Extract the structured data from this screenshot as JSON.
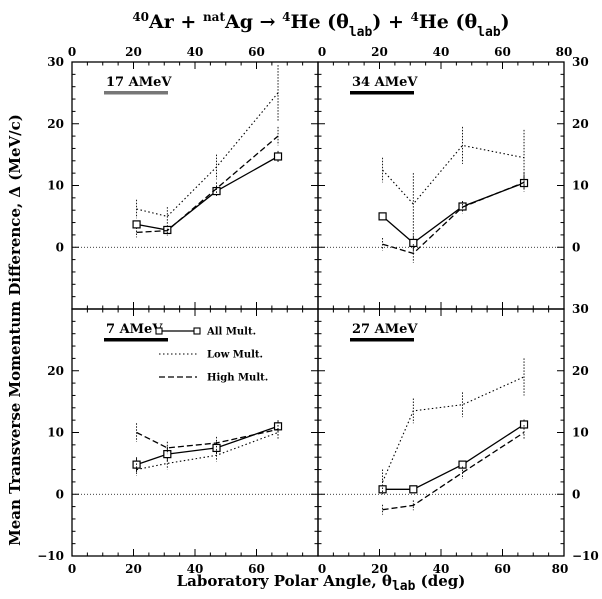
{
  "title": {
    "parts": [
      {
        "text": "40",
        "sup": true
      },
      {
        "text": "Ar + ",
        "sup": false
      },
      {
        "text": "nat",
        "sup": true
      },
      {
        "text": "Ag → ",
        "sup": false
      },
      {
        "text": "4",
        "sup": true
      },
      {
        "text": "He (θ",
        "sup": false
      },
      {
        "text": "lab",
        "sub": true
      },
      {
        "text": ") + ",
        "sup": false
      },
      {
        "text": "4",
        "sup": true
      },
      {
        "text": "He (θ",
        "sup": false
      },
      {
        "text": "lab",
        "sub": true
      },
      {
        "text": ")",
        "sup": false
      }
    ]
  },
  "xlabel": {
    "main": "Laboratory Polar Angle, θ",
    "sub": "lab",
    "tail": " (deg)"
  },
  "ylabel": "Mean Transverse Momentum Difference, Δ (MeV/c)",
  "legend": [
    {
      "name": "All  Mult.",
      "style": "solid"
    },
    {
      "name": "Low  Mult.",
      "style": "dotted"
    },
    {
      "name": "High Mult.",
      "style": "dashed"
    }
  ],
  "chart_data": [
    {
      "type": "line",
      "panel": "top-left",
      "label": "17 AMeV",
      "label_bar_color": "#777777",
      "xlim": [
        0,
        80
      ],
      "ylim": [
        -10,
        30
      ],
      "xticks_top": [
        "0",
        "20",
        "40",
        "60"
      ],
      "xticks_bottom": [],
      "yticks_left": [
        "30",
        "20",
        "10",
        "0"
      ],
      "yticks_right": [],
      "series": [
        {
          "name": "All  Mult.",
          "style": "solid",
          "marker": "square",
          "x": [
            21,
            31,
            47,
            67
          ],
          "y": [
            3.7,
            2.8,
            9.1,
            14.7
          ],
          "err": [
            0.6,
            0.6,
            0.8,
            0.9
          ]
        },
        {
          "name": "Low  Mult.",
          "style": "dotted",
          "x": [
            21,
            31,
            47,
            67
          ],
          "y": [
            6.2,
            5.0,
            13.0,
            25.0
          ],
          "err": [
            1.5,
            1.5,
            2.0,
            4.5
          ]
        },
        {
          "name": "High Mult.",
          "style": "dashed",
          "x": [
            21,
            31,
            47,
            67
          ],
          "y": [
            2.4,
            2.7,
            9.5,
            18.0
          ],
          "err": [
            0.8,
            0.8,
            1.0,
            1.5
          ]
        }
      ]
    },
    {
      "type": "line",
      "panel": "top-right",
      "label": "34 AMeV",
      "label_bar_color": "#000000",
      "xlim": [
        0,
        80
      ],
      "ylim": [
        -10,
        30
      ],
      "xticks_top": [
        "0",
        "20",
        "40",
        "60",
        "80"
      ],
      "xticks_bottom": [],
      "yticks_left": [],
      "yticks_right": [
        "30",
        "20",
        "10",
        "0"
      ],
      "series": [
        {
          "name": "All  Mult.",
          "style": "solid",
          "marker": "square",
          "x": [
            21,
            31,
            47,
            67
          ],
          "y": [
            5.0,
            0.7,
            6.6,
            10.4
          ],
          "err": [
            0.6,
            1.2,
            0.7,
            1.0
          ]
        },
        {
          "name": "Low  Mult.",
          "style": "dotted",
          "x": [
            21,
            31,
            47,
            67
          ],
          "y": [
            12.5,
            7.0,
            16.5,
            14.5
          ],
          "err": [
            2.0,
            5.0,
            3.0,
            4.5
          ]
        },
        {
          "name": "High Mult.",
          "style": "dashed",
          "x": [
            21,
            31,
            47,
            67
          ],
          "y": [
            0.5,
            -1.0,
            6.5,
            10.5
          ],
          "err": [
            1.0,
            1.5,
            1.0,
            1.5
          ]
        }
      ]
    },
    {
      "type": "line",
      "panel": "bottom-left",
      "label": "7 AMeV",
      "label_bar_color": "#000000",
      "xlim": [
        0,
        80
      ],
      "ylim": [
        -10,
        30
      ],
      "xticks_top": [],
      "xticks_bottom": [
        "0",
        "20",
        "40",
        "60"
      ],
      "yticks_left": [
        "20",
        "10",
        "0",
        "−10"
      ],
      "yticks_right": [],
      "series": [
        {
          "name": "All  Mult.",
          "style": "solid",
          "marker": "square",
          "x": [
            21,
            31,
            47,
            67
          ],
          "y": [
            4.8,
            6.5,
            7.5,
            11.0
          ],
          "err": [
            1.2,
            1.2,
            1.0,
            1.0
          ]
        },
        {
          "name": "Low  Mult.",
          "style": "dotted",
          "x": [
            21,
            31,
            47,
            67
          ],
          "y": [
            4.0,
            5.0,
            6.3,
            10.0
          ],
          "err": [
            1.0,
            1.0,
            1.0,
            1.2
          ]
        },
        {
          "name": "High Mult.",
          "style": "dashed",
          "x": [
            21,
            31,
            47,
            67
          ],
          "y": [
            10.0,
            7.5,
            8.3,
            10.5
          ],
          "err": [
            1.5,
            1.0,
            1.0,
            1.2
          ]
        }
      ]
    },
    {
      "type": "line",
      "panel": "bottom-right",
      "label": "27 AMeV",
      "label_bar_color": "#000000",
      "xlim": [
        0,
        80
      ],
      "ylim": [
        -10,
        30
      ],
      "xticks_top": [],
      "xticks_bottom": [
        "0",
        "20",
        "40",
        "60",
        "80"
      ],
      "yticks_left": [],
      "yticks_right": [
        "30",
        "20",
        "10",
        "0",
        "−10"
      ],
      "series": [
        {
          "name": "All  Mult.",
          "style": "solid",
          "marker": "square",
          "x": [
            21,
            31,
            47,
            67
          ],
          "y": [
            0.8,
            0.8,
            4.8,
            11.3
          ],
          "err": [
            0.5,
            0.5,
            0.6,
            0.8
          ]
        },
        {
          "name": "Low  Mult.",
          "style": "dotted",
          "x": [
            21,
            31,
            47,
            67
          ],
          "y": [
            2.0,
            13.5,
            14.5,
            19.0
          ],
          "err": [
            2.0,
            2.0,
            2.0,
            3.0
          ]
        },
        {
          "name": "High Mult.",
          "style": "dashed",
          "x": [
            21,
            31,
            47,
            67
          ],
          "y": [
            -2.5,
            -1.8,
            3.5,
            10.0
          ],
          "err": [
            0.8,
            0.8,
            1.0,
            1.2
          ]
        }
      ]
    }
  ]
}
